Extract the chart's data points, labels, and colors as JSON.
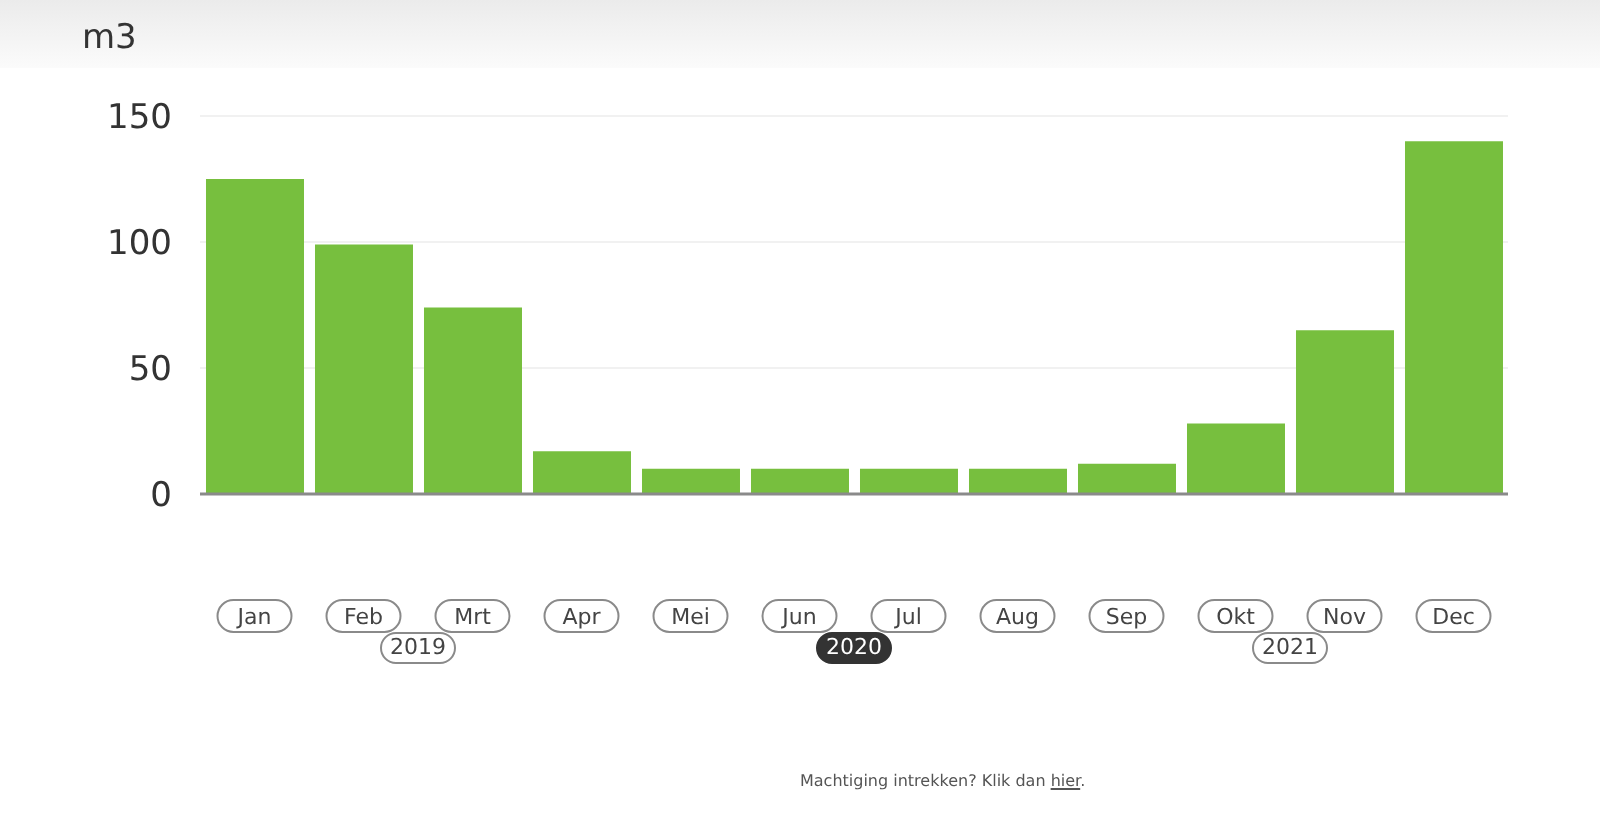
{
  "chart_data": {
    "type": "bar",
    "ylabel": "m3",
    "categories": [
      "Jan",
      "Feb",
      "Mrt",
      "Apr",
      "Mei",
      "Jun",
      "Jul",
      "Aug",
      "Sep",
      "Okt",
      "Nov",
      "Dec"
    ],
    "values": [
      125,
      99,
      74,
      17,
      10,
      10,
      10,
      10,
      12,
      28,
      65,
      140
    ],
    "color": "#77bf3e",
    "ylim": [
      0,
      150
    ],
    "yticks": [
      0,
      50,
      100,
      150
    ],
    "grid": "y",
    "annotations": [
      "2019",
      "2020",
      "2021",
      "Machtiging intrekken? Klik dan hier."
    ]
  }
}
